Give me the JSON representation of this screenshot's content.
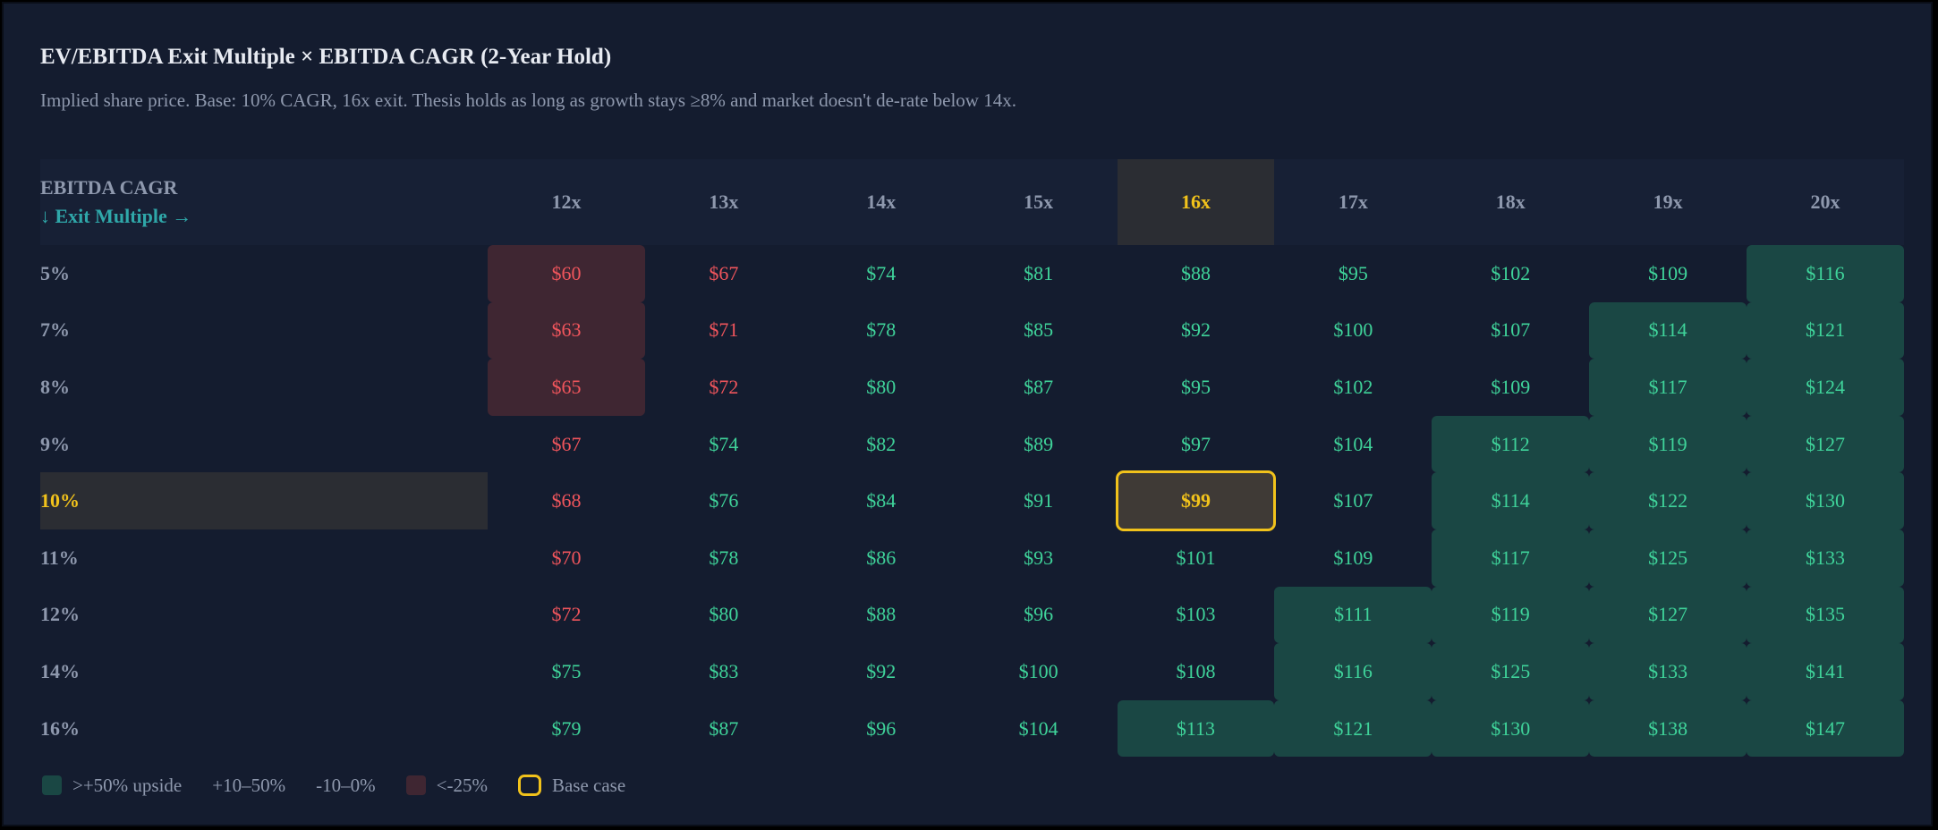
{
  "title": "EV/EBITDA Exit Multiple × EBITDA CAGR (2-Year Hold)",
  "subtitle": "Implied share price. Base: 10% CAGR, 16x exit. Thesis holds as long as growth stays ≥8% and market doesn't de-rate below 14x.",
  "colors": {
    "background": "#141c2f",
    "upside_fill": "#1a4744",
    "downside_fill": "#3f2632",
    "positive_text": "#3fd39a",
    "negative_text": "#f0555c",
    "base_highlight": "#f1c21b",
    "axis_label_accent": "#2fa7a9"
  },
  "chart_data": {
    "type": "heatmap",
    "row_axis_label": "EBITDA CAGR",
    "col_axis_label": "↓ Exit Multiple →",
    "columns": [
      "12x",
      "13x",
      "14x",
      "15x",
      "16x",
      "17x",
      "18x",
      "19x",
      "20x"
    ],
    "rows": [
      "5%",
      "7%",
      "8%",
      "9%",
      "10%",
      "11%",
      "12%",
      "14%",
      "16%"
    ],
    "base_row": "10%",
    "base_col": "16x",
    "values": [
      [
        "$60",
        "$67",
        "$74",
        "$81",
        "$88",
        "$95",
        "$102",
        "$109",
        "$116"
      ],
      [
        "$63",
        "$71",
        "$78",
        "$85",
        "$92",
        "$100",
        "$107",
        "$114",
        "$121"
      ],
      [
        "$65",
        "$72",
        "$80",
        "$87",
        "$95",
        "$102",
        "$109",
        "$117",
        "$124"
      ],
      [
        "$67",
        "$74",
        "$82",
        "$89",
        "$97",
        "$104",
        "$112",
        "$119",
        "$127"
      ],
      [
        "$68",
        "$76",
        "$84",
        "$91",
        "$99",
        "$107",
        "$114",
        "$122",
        "$130"
      ],
      [
        "$70",
        "$78",
        "$86",
        "$93",
        "$101",
        "$109",
        "$117",
        "$125",
        "$133"
      ],
      [
        "$72",
        "$80",
        "$88",
        "$96",
        "$103",
        "$111",
        "$119",
        "$127",
        "$135"
      ],
      [
        "$75",
        "$83",
        "$92",
        "$100",
        "$108",
        "$116",
        "$125",
        "$133",
        "$141"
      ],
      [
        "$79",
        "$87",
        "$96",
        "$104",
        "$113",
        "$121",
        "$130",
        "$138",
        "$147"
      ]
    ],
    "text_class": [
      [
        "neg",
        "neg",
        "pos",
        "pos",
        "pos",
        "pos",
        "pos",
        "pos",
        "pos"
      ],
      [
        "neg",
        "neg",
        "pos",
        "pos",
        "pos",
        "pos",
        "pos",
        "pos",
        "pos"
      ],
      [
        "neg",
        "neg",
        "pos",
        "pos",
        "pos",
        "pos",
        "pos",
        "pos",
        "pos"
      ],
      [
        "neg",
        "pos",
        "pos",
        "pos",
        "pos",
        "pos",
        "pos",
        "pos",
        "pos"
      ],
      [
        "neg",
        "pos",
        "pos",
        "pos",
        "base",
        "pos",
        "pos",
        "pos",
        "pos"
      ],
      [
        "neg",
        "pos",
        "pos",
        "pos",
        "pos",
        "pos",
        "pos",
        "pos",
        "pos"
      ],
      [
        "neg",
        "pos",
        "pos",
        "pos",
        "pos",
        "pos",
        "pos",
        "pos",
        "pos"
      ],
      [
        "pos",
        "pos",
        "pos",
        "pos",
        "pos",
        "pos",
        "pos",
        "pos",
        "pos"
      ],
      [
        "pos",
        "pos",
        "pos",
        "pos",
        "pos",
        "pos",
        "pos",
        "pos",
        "pos"
      ]
    ],
    "fill_class": [
      [
        "down",
        "",
        "",
        "",
        "",
        "",
        "",
        "",
        "up"
      ],
      [
        "down",
        "",
        "",
        "",
        "",
        "",
        "",
        "up",
        "up"
      ],
      [
        "down",
        "",
        "",
        "",
        "",
        "",
        "",
        "up",
        "up"
      ],
      [
        "",
        "",
        "",
        "",
        "",
        "",
        "up",
        "up",
        "up"
      ],
      [
        "",
        "",
        "",
        "",
        "",
        "",
        "up",
        "up",
        "up"
      ],
      [
        "",
        "",
        "",
        "",
        "",
        "",
        "up",
        "up",
        "up"
      ],
      [
        "",
        "",
        "",
        "",
        "",
        "up",
        "up",
        "up",
        "up"
      ],
      [
        "",
        "",
        "",
        "",
        "",
        "up",
        "up",
        "up",
        "up"
      ],
      [
        "",
        "",
        "",
        "",
        "up",
        "up",
        "up",
        "up",
        "up"
      ]
    ],
    "legend": [
      {
        "label": ">+50% upside",
        "swatch": "up"
      },
      {
        "label": "+10–50%",
        "swatch": ""
      },
      {
        "label": "-10–0%",
        "swatch": ""
      },
      {
        "label": "<-25%",
        "swatch": "down"
      },
      {
        "label": "Base case",
        "swatch": "base"
      }
    ]
  }
}
